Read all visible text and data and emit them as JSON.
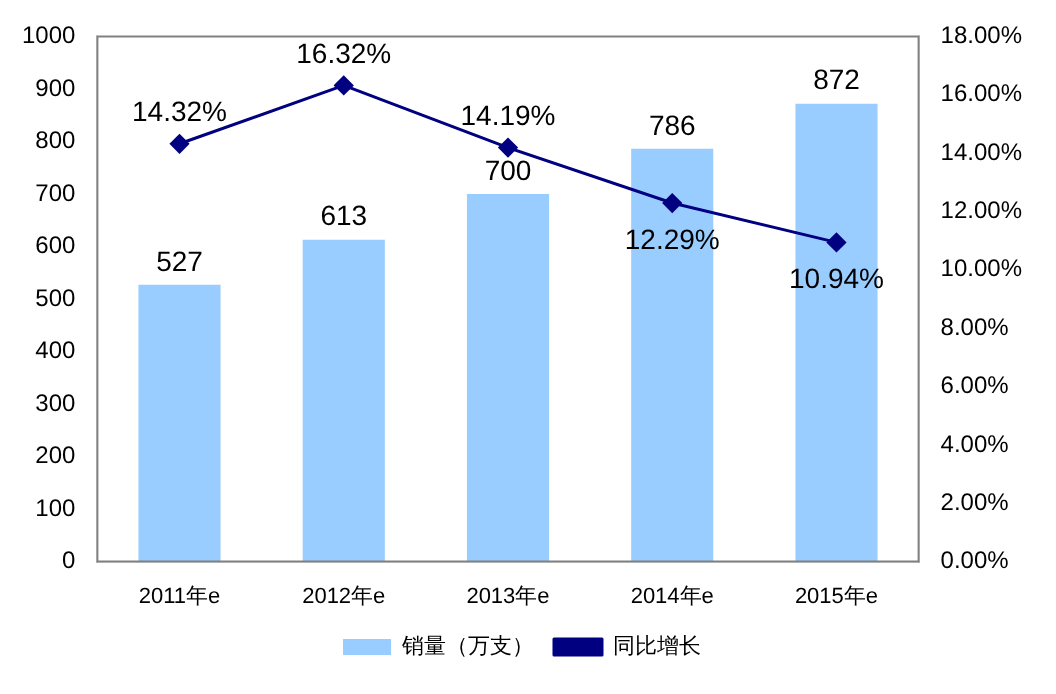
{
  "chart_data": {
    "type": "bar",
    "categories": [
      "2011年e",
      "2012年e",
      "2013年e",
      "2014年e",
      "2015年e"
    ],
    "series": [
      {
        "name": "销量（万支）",
        "color": "#99ccff",
        "values": [
          527,
          613,
          700,
          786,
          872
        ]
      },
      {
        "name": "同比增长",
        "type": "line",
        "axis": "y2",
        "color": "#000080",
        "values": [
          14.32,
          16.32,
          14.19,
          12.29,
          10.94
        ],
        "value_labels": [
          "14.32%",
          "16.32%",
          "14.19%",
          "12.29%",
          "10.94%"
        ]
      }
    ],
    "ylim": [
      0,
      1000
    ],
    "yticks": [
      0,
      100,
      200,
      300,
      400,
      500,
      600,
      700,
      800,
      900,
      1000
    ],
    "y2lim": [
      0,
      18
    ],
    "y2ticks": [
      {
        "value": 0,
        "label": "0.00%"
      },
      {
        "value": 2,
        "label": "2.00%"
      },
      {
        "value": 4,
        "label": "4.00%"
      },
      {
        "value": 6,
        "label": "6.00%"
      },
      {
        "value": 8,
        "label": "8.00%"
      },
      {
        "value": 10,
        "label": "10.00%"
      },
      {
        "value": 12,
        "label": "12.00%"
      },
      {
        "value": 14,
        "label": "14.00%"
      },
      {
        "value": 16,
        "label": "16.00%"
      },
      {
        "value": 18,
        "label": "18.00%"
      }
    ],
    "data_labels": true,
    "legend": "bottom",
    "marker": "diamond",
    "grid": false
  }
}
